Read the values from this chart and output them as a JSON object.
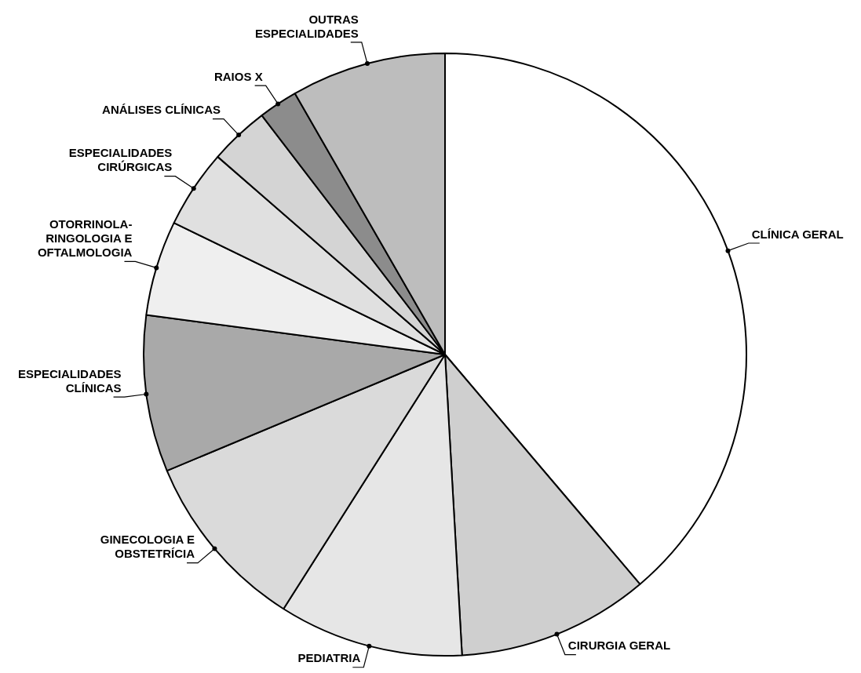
{
  "chart_data": {
    "type": "pie",
    "categories": [
      "CLÍNICA GERAL",
      "CIRURGIA GERAL",
      "PEDIATRIA",
      "GINECOLOGIA E OBSTETRÍCIA",
      "ESPECIALIDADES CLÍNICAS",
      "OTORRINOLA-RINGOLOGIA E OFTALMOLOGIA",
      "ESPECIALIDADES CIRÚRGICAS",
      "ANÁLISES CLÍNICAS",
      "RAIOS X",
      "OUTRAS ESPECIALIDADES"
    ],
    "values": [
      38.8,
      10.3,
      9.9,
      9.7,
      8.4,
      5.1,
      4.2,
      3.2,
      2.1,
      8.3
    ],
    "colors": [
      "#ffffff",
      "#cfcfcf",
      "#e6e6e6",
      "#dadada",
      "#a9a9a9",
      "#efefef",
      "#e0e0e0",
      "#d4d4d4",
      "#8c8c8c",
      "#bdbdbd"
    ],
    "legend": false
  }
}
